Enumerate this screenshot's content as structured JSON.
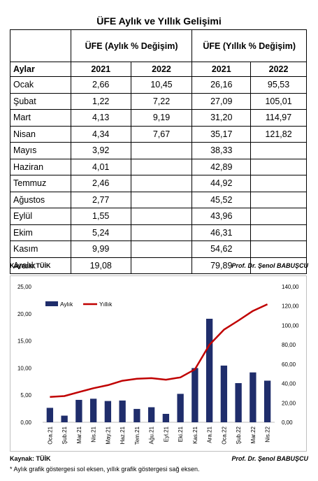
{
  "title": "ÜFE Aylık ve Yıllık Gelişimi",
  "table": {
    "header_monthly": "ÜFE (Aylık % Değişim)",
    "header_yearly": "ÜFE (Yıllık % Değişim)",
    "col_months": "Aylar",
    "years": [
      "2021",
      "2022",
      "2021",
      "2022"
    ],
    "rows": [
      {
        "month": "Ocak",
        "m2021": "2,66",
        "m2022": "10,45",
        "y2021": "26,16",
        "y2022": "95,53"
      },
      {
        "month": "Şubat",
        "m2021": "1,22",
        "m2022": "7,22",
        "y2021": "27,09",
        "y2022": "105,01"
      },
      {
        "month": "Mart",
        "m2021": "4,13",
        "m2022": "9,19",
        "y2021": "31,20",
        "y2022": "114,97"
      },
      {
        "month": "Nisan",
        "m2021": "4,34",
        "m2022": "7,67",
        "y2021": "35,17",
        "y2022": "121,82"
      },
      {
        "month": "Mayıs",
        "m2021": "3,92",
        "m2022": "",
        "y2021": "38,33",
        "y2022": ""
      },
      {
        "month": "Haziran",
        "m2021": "4,01",
        "m2022": "",
        "y2021": "42,89",
        "y2022": ""
      },
      {
        "month": "Temmuz",
        "m2021": "2,46",
        "m2022": "",
        "y2021": "44,92",
        "y2022": ""
      },
      {
        "month": "Ağustos",
        "m2021": "2,77",
        "m2022": "",
        "y2021": "45,52",
        "y2022": ""
      },
      {
        "month": "Eylül",
        "m2021": "1,55",
        "m2022": "",
        "y2021": "43,96",
        "y2022": ""
      },
      {
        "month": "Ekim",
        "m2021": "5,24",
        "m2022": "",
        "y2021": "46,31",
        "y2022": ""
      },
      {
        "month": "Kasım",
        "m2021": "9,99",
        "m2022": "",
        "y2021": "54,62",
        "y2022": ""
      },
      {
        "month": "Aralık",
        "m2021": "19,08",
        "m2022": "",
        "y2021": "79,89",
        "y2022": ""
      }
    ]
  },
  "source_label": "Kaynak: TÜİK",
  "author": "Prof. Dr. Şenol BABUŞCU",
  "footnote": "* Aylık grafik göstergesi sol eksen, yıllık grafik göstergesi sağ eksen.",
  "chart_data": {
    "type": "bar",
    "categories": [
      "Oca.21",
      "Şub.21",
      "Mar.21",
      "Nis.21",
      "May.21",
      "Haz.21",
      "Tem.21",
      "Ağu.21",
      "Eyl.21",
      "Eki.21",
      "Kas.21",
      "Ara.21",
      "Oca.22",
      "Şub.22",
      "Mar.22",
      "Nis.22"
    ],
    "series": [
      {
        "name": "Aylık",
        "kind": "bar",
        "axis": "left",
        "color": "#1f2d6b",
        "values": [
          2.66,
          1.22,
          4.13,
          4.34,
          3.92,
          4.01,
          2.46,
          2.77,
          1.55,
          5.24,
          9.99,
          19.08,
          10.45,
          7.22,
          9.19,
          7.67
        ]
      },
      {
        "name": "Yıllık",
        "kind": "line",
        "axis": "right",
        "color": "#c00000",
        "values": [
          26.16,
          27.09,
          31.2,
          35.17,
          38.33,
          42.89,
          44.92,
          45.52,
          43.96,
          46.31,
          54.62,
          79.89,
          95.53,
          105.01,
          114.97,
          121.82
        ]
      }
    ],
    "left_axis": {
      "min": 0,
      "max": 25,
      "ticks": [
        "0,00",
        "5,00",
        "10,00",
        "15,00",
        "20,00",
        "25,00"
      ]
    },
    "right_axis": {
      "min": 0,
      "max": 140,
      "ticks": [
        "0,00",
        "20,00",
        "40,00",
        "60,00",
        "80,00",
        "100,00",
        "120,00",
        "140,00"
      ]
    },
    "legend_position": "top-left",
    "grid": false
  }
}
